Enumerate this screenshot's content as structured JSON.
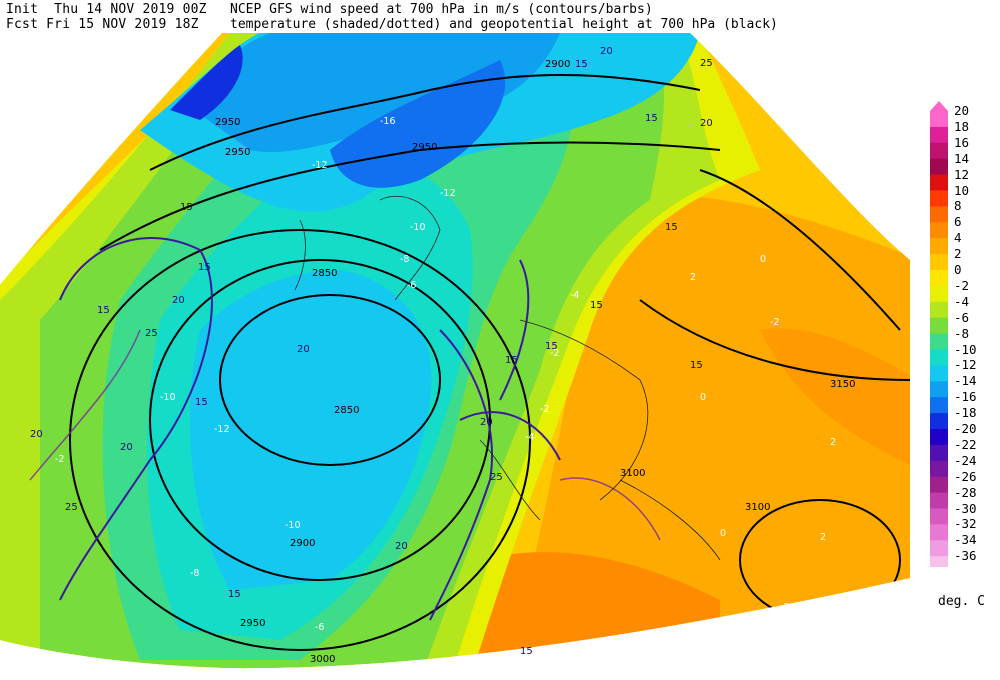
{
  "header": {
    "init_label": "Init",
    "init_value": "Thu 14 NOV 2019 00Z",
    "fcst_label": "Fcst",
    "fcst_value": "Fri 15 NOV 2019 18Z",
    "title_line1": "NCEP GFS wind speed at 700 hPa in m/s (contours/barbs)",
    "title_line2": "temperature (shaded/dotted) and geopotential height at 700 hPa (black)"
  },
  "colorbar": {
    "labels": [
      "20",
      "18",
      "16",
      "14",
      "12",
      "10",
      "8",
      "6",
      "4",
      "2",
      "0",
      "-2",
      "-4",
      "-6",
      "-8",
      "-10",
      "-12",
      "-14",
      "-16",
      "-18",
      "-20",
      "-22",
      "-24",
      "-26",
      "-28",
      "-30",
      "-32",
      "-34",
      "-36"
    ],
    "colors": [
      "#ff66cc",
      "#e0209a",
      "#c01070",
      "#a00850",
      "#e01010",
      "#ff3a00",
      "#ff6a00",
      "#ff8c00",
      "#ffaa00",
      "#ffc800",
      "#ffe600",
      "#e6f000",
      "#b4e61e",
      "#78dc3c",
      "#3cdc8c",
      "#14dcc8",
      "#14c8f0",
      "#10a0f0",
      "#1070f0",
      "#1030e0",
      "#2000c8",
      "#5010b4",
      "#7818a0",
      "#a0208c",
      "#c03ca8",
      "#d85ac0",
      "#e878d4",
      "#f09ce0",
      "#f8c0ec"
    ],
    "units": "deg. C"
  },
  "map": {
    "height_labels": [
      "2900",
      "2950",
      "2950",
      "2950",
      "2850",
      "2850",
      "2900",
      "2950",
      "3000",
      "3100",
      "3100",
      "3150"
    ],
    "wind_labels": [
      "15",
      "20",
      "15",
      "25",
      "15",
      "20",
      "15",
      "20",
      "25",
      "20",
      "15",
      "15",
      "20",
      "25",
      "20",
      "25",
      "15",
      "20",
      "15",
      "15",
      "15",
      "15",
      "20",
      "15",
      "15"
    ],
    "temp_labels": [
      "-16",
      "-12",
      "-12",
      "-10",
      "-8",
      "-6",
      "-4",
      "-2",
      "-2",
      "-12",
      "-10",
      "-8",
      "0",
      "2",
      "-2",
      "0",
      "2",
      "-4",
      "-10",
      "-6",
      "-2",
      "0",
      "2",
      "-2"
    ]
  }
}
